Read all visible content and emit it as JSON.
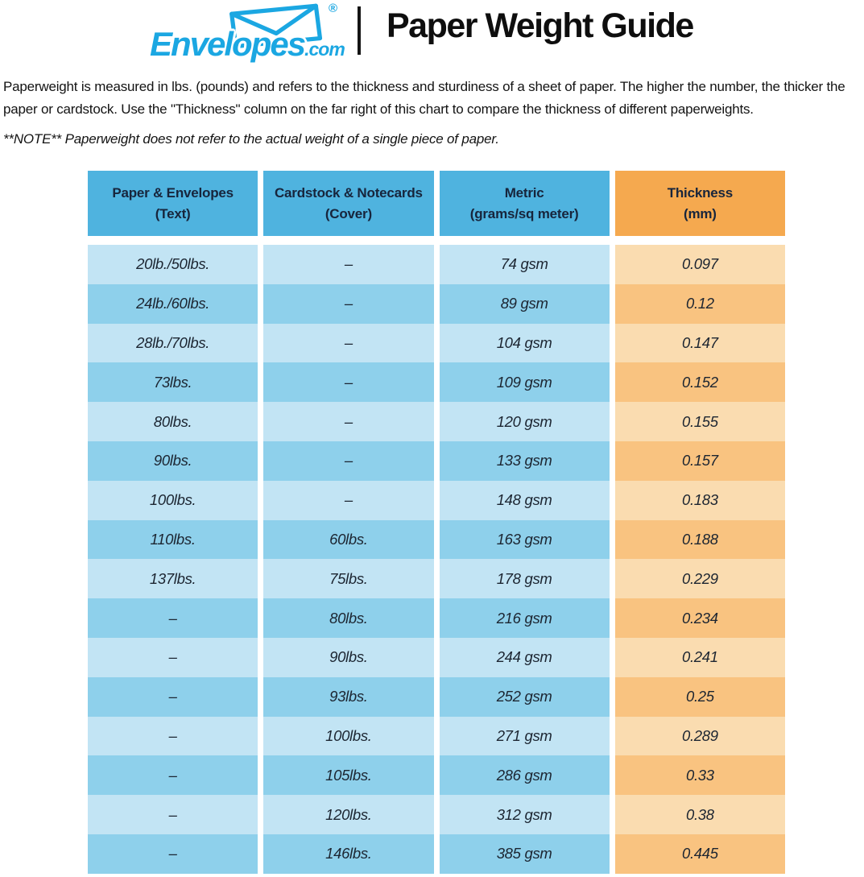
{
  "logo": {
    "brand": "Envelopes",
    "tld": ".com",
    "registered": "®"
  },
  "header": {
    "title": "Paper Weight Guide"
  },
  "intro": {
    "text": "Paperweight is measured in lbs. (pounds) and refers to the thickness and sturdiness of a sheet of paper. The higher the number, the thicker the paper or cardstock. Use the \"Thickness\" column on the far right of this chart to compare the thickness of different paperweights.",
    "note": "**NOTE** Paperweight does not refer to the actual weight of a single piece of paper."
  },
  "colors": {
    "logoBlue": "#1ba7e2",
    "headerBlue": "#4fb3df",
    "headerOrange": "#f5a94f",
    "rowLightBlue": "#c2e4f4",
    "rowDarkBlue": "#8ed0eb",
    "rowLightOrange": "#fadcb0",
    "rowDarkOrange": "#f9c380",
    "headerText": "#17253c",
    "cellText": "#1c2531"
  },
  "chart_data": {
    "type": "table",
    "title": "Paper Weight Guide",
    "columns": [
      {
        "label": "Paper & Envelopes",
        "sublabel": "(Text)"
      },
      {
        "label": "Cardstock & Notecards",
        "sublabel": "(Cover)"
      },
      {
        "label": "Metric",
        "sublabel": "(grams/sq meter)"
      },
      {
        "label": "Thickness",
        "sublabel": "(mm)"
      }
    ],
    "rows": [
      [
        "20lb./50lbs.",
        "–",
        "74 gsm",
        "0.097"
      ],
      [
        "24lb./60lbs.",
        "–",
        "89 gsm",
        "0.12"
      ],
      [
        "28lb./70lbs.",
        "–",
        "104 gsm",
        "0.147"
      ],
      [
        "73lbs.",
        "–",
        "109 gsm",
        "0.152"
      ],
      [
        "80lbs.",
        "–",
        "120 gsm",
        "0.155"
      ],
      [
        "90lbs.",
        "–",
        "133 gsm",
        "0.157"
      ],
      [
        "100lbs.",
        "–",
        "148 gsm",
        "0.183"
      ],
      [
        "110lbs.",
        "60lbs.",
        "163 gsm",
        "0.188"
      ],
      [
        "137lbs.",
        "75lbs.",
        "178 gsm",
        "0.229"
      ],
      [
        "–",
        "80lbs.",
        "216 gsm",
        "0.234"
      ],
      [
        "–",
        "90lbs.",
        "244 gsm",
        "0.241"
      ],
      [
        "–",
        "93lbs.",
        "252 gsm",
        "0.25"
      ],
      [
        "–",
        "100lbs.",
        "271 gsm",
        "0.289"
      ],
      [
        "–",
        "105lbs.",
        "286 gsm",
        "0.33"
      ],
      [
        "–",
        "120lbs.",
        "312 gsm",
        "0.38"
      ],
      [
        "–",
        "146lbs.",
        "385 gsm",
        "0.445"
      ]
    ]
  }
}
